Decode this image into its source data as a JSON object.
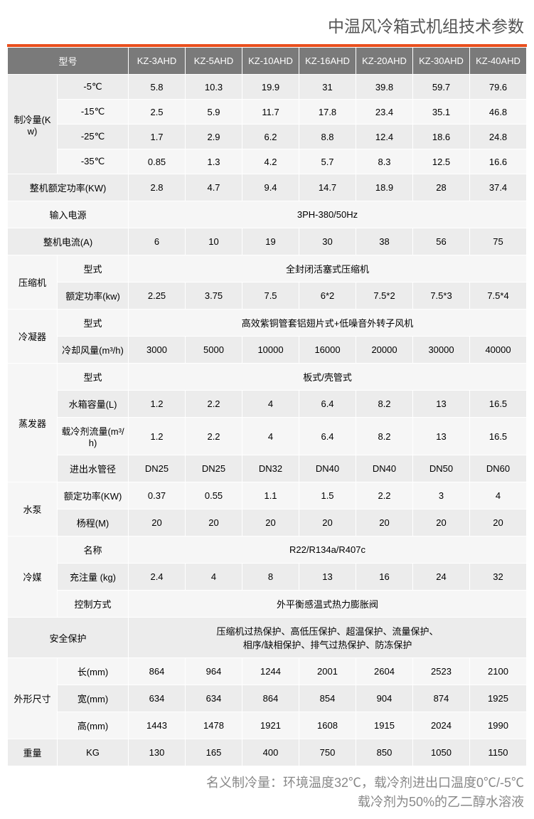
{
  "title": "中温风冷箱式机组技术参数",
  "footnote_line1": "名义制冷量：环境温度32℃，载冷剂进出口温度0℃/-5℃",
  "footnote_line2": "载冷剂为50%的乙二醇水溶液",
  "colors": {
    "accent": "#e94f1d",
    "header_bg": "#7a7a7a",
    "header_fg": "#ffffff",
    "row_odd": "#ececec",
    "row_even": "#f6f6f6",
    "title_color": "#555555",
    "footnote_color": "#888888",
    "border": "#ffffff",
    "page_bg": "#ffffff"
  },
  "font_sizes": {
    "title": 23,
    "cell": 13,
    "footnote": 18
  },
  "table": {
    "header": [
      "型号",
      "KZ-3AHD",
      "KZ-5AHD",
      "KZ-10AHD",
      "KZ-16AHD",
      "KZ-20AHD",
      "KZ-30AHD",
      "KZ-40AHD"
    ],
    "model_header_span": 2,
    "column_widths": {
      "label1": 70,
      "label2": 100,
      "data": 80
    },
    "rows": [
      {
        "g": "制冷量(Kw)",
        "sub": "-5℃",
        "v": [
          "5.8",
          "10.3",
          "19.9",
          "31",
          "39.8",
          "59.7",
          "79.6"
        ],
        "rowspan": 4,
        "band": "odd"
      },
      {
        "sub": "-15℃",
        "v": [
          "2.5",
          "5.9",
          "11.7",
          "17.8",
          "23.4",
          "35.1",
          "46.8"
        ],
        "band": "even"
      },
      {
        "sub": "-25℃",
        "v": [
          "1.7",
          "2.9",
          "6.2",
          "8.8",
          "12.4",
          "18.6",
          "24.8"
        ],
        "band": "odd"
      },
      {
        "sub": "-35℃",
        "v": [
          "0.85",
          "1.3",
          "4.2",
          "5.7",
          "8.3",
          "12.5",
          "16.6"
        ],
        "band": "even"
      },
      {
        "full": "整机额定功率(KW)",
        "v": [
          "2.8",
          "4.7",
          "9.4",
          "14.7",
          "18.9",
          "28",
          "37.4"
        ],
        "band": "odd"
      },
      {
        "full": "输入电源",
        "span": "3PH-380/50Hz",
        "band": "even"
      },
      {
        "full": "整机电流(A)",
        "v": [
          "6",
          "10",
          "19",
          "30",
          "38",
          "56",
          "75"
        ],
        "band": "odd"
      },
      {
        "g": "压缩机",
        "sub": "型式",
        "span": "全封闭活塞式压缩机",
        "rowspan": 2,
        "band": "even"
      },
      {
        "sub": "额定功率(kw)",
        "v": [
          "2.25",
          "3.75",
          "7.5",
          "6*2",
          "7.5*2",
          "7.5*3",
          "7.5*4"
        ],
        "band": "odd"
      },
      {
        "g": "冷凝器",
        "sub": "型式",
        "span": "高效紫铜管套铝翅片式+低噪音外转子风机",
        "rowspan": 2,
        "band": "even"
      },
      {
        "sub": "冷却风量(m³/h)",
        "v": [
          "3000",
          "5000",
          "10000",
          "16000",
          "20000",
          "30000",
          "40000"
        ],
        "band": "odd"
      },
      {
        "g": "蒸发器",
        "sub": "型式",
        "span": "板式/壳管式",
        "rowspan": 4,
        "band": "even"
      },
      {
        "sub": "水箱容量(L)",
        "v": [
          "1.2",
          "2.2",
          "4",
          "6.4",
          "8.2",
          "13",
          "16.5"
        ],
        "band": "odd"
      },
      {
        "sub": "载冷剂流量(m³/h)",
        "v": [
          "1.2",
          "2.2",
          "4",
          "6.4",
          "8.2",
          "13",
          "16.5"
        ],
        "band": "even"
      },
      {
        "sub": "进出水管径",
        "v": [
          "DN25",
          "DN25",
          "DN32",
          "DN40",
          "DN40",
          "DN50",
          "DN60"
        ],
        "band": "odd"
      },
      {
        "g": "水泵",
        "sub": "额定功率(KW)",
        "v": [
          "0.37",
          "0.55",
          "1.1",
          "1.5",
          "2.2",
          "3",
          "4"
        ],
        "rowspan": 2,
        "band": "even"
      },
      {
        "sub": "杨程(M)",
        "v": [
          "20",
          "20",
          "20",
          "20",
          "20",
          "20",
          "20"
        ],
        "band": "odd"
      },
      {
        "g": "冷媒",
        "sub": "名称",
        "span": "R22/R134a/R407c",
        "rowspan": 3,
        "band": "even"
      },
      {
        "sub": "充注量 (kg)",
        "v": [
          "2.4",
          "4",
          "8",
          "13",
          "16",
          "24",
          "32"
        ],
        "band": "odd"
      },
      {
        "sub": "控制方式",
        "span": "外平衡感温式热力膨胀阀",
        "band": "even"
      },
      {
        "full": "安全保护",
        "span": "压缩机过热保护、高低压保护、超温保护、流量保护、\n相序/缺相保护、排气过热保护、防冻保护",
        "band": "odd"
      },
      {
        "g": "外形尺寸",
        "sub": "长(mm)",
        "v": [
          "864",
          "964",
          "1244",
          "2001",
          "2604",
          "2523",
          "2100"
        ],
        "rowspan": 3,
        "band": "even"
      },
      {
        "sub": "宽(mm)",
        "v": [
          "634",
          "634",
          "864",
          "854",
          "904",
          "874",
          "1925"
        ],
        "band": "odd"
      },
      {
        "sub": "高(mm)",
        "v": [
          "1443",
          "1478",
          "1921",
          "1608",
          "1915",
          "2024",
          "1990"
        ],
        "band": "even"
      },
      {
        "g": "重量",
        "sub": "KG",
        "v": [
          "130",
          "165",
          "400",
          "750",
          "850",
          "1050",
          "1150"
        ],
        "rowspan": 1,
        "band": "odd"
      }
    ]
  }
}
